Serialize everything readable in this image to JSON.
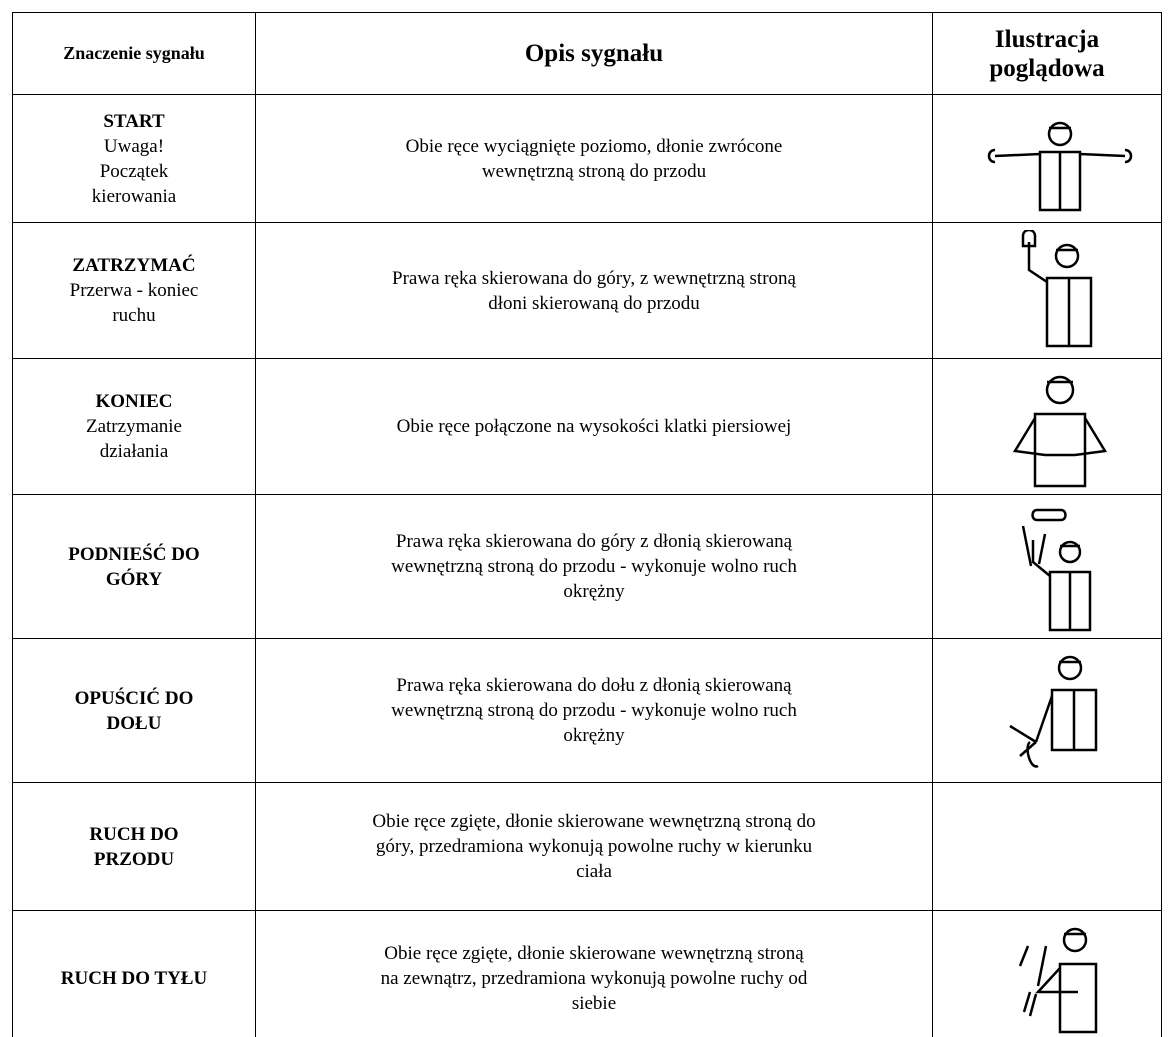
{
  "header": {
    "signal": "Znaczenie sygnału",
    "description": "Opis sygnału",
    "illustration": [
      "Ilustracja",
      "poglądowa"
    ]
  },
  "rows": [
    {
      "title": [
        "START"
      ],
      "subtitle": [
        "Uwaga!",
        "Początek",
        "kierowania"
      ],
      "description": [
        "Obie ręce wyciągnięte poziomo, dłonie zwrócone",
        "wewnętrzną stroną do przodu"
      ]
    },
    {
      "title": [
        "ZATRZYMAĆ"
      ],
      "subtitle": [
        "Przerwa - koniec",
        "ruchu"
      ],
      "description": [
        "Prawa ręka skierowana do góry, z wewnętrzną stroną",
        "dłoni skierowaną do przodu"
      ]
    },
    {
      "title": [
        "KONIEC"
      ],
      "subtitle": [
        "Zatrzymanie",
        "działania"
      ],
      "description": [
        "Obie ręce połączone na wysokości klatki piersiowej"
      ]
    },
    {
      "title": [
        "PODNIEŚĆ DO",
        "GÓRY"
      ],
      "subtitle": [],
      "description": [
        "Prawa ręka skierowana do góry z dłonią skierowaną",
        "wewnętrzną stroną do przodu - wykonuje wolno ruch",
        "okrężny"
      ]
    },
    {
      "title": [
        "OPUŚCIĆ DO",
        "DOŁU"
      ],
      "subtitle": [],
      "description": [
        "Prawa ręka skierowana do dołu z dłonią skierowaną",
        "wewnętrzną stroną do przodu - wykonuje wolno ruch",
        "okrężny"
      ]
    },
    {
      "title": [
        "RUCH DO",
        "PRZODU"
      ],
      "subtitle": [],
      "description": [
        "Obie ręce zgięte, dłonie skierowane wewnętrzną stroną do",
        "góry, przedramiona wykonują powolne ruchy w kierunku",
        "ciała"
      ]
    },
    {
      "title": [
        "RUCH DO TYŁU"
      ],
      "subtitle": [],
      "description": [
        "Obie ręce zgięte, dłonie skierowane wewnętrzną stroną",
        "na zewnątrz, przedramiona wykonują powolne ruchy od",
        "siebie"
      ]
    }
  ]
}
